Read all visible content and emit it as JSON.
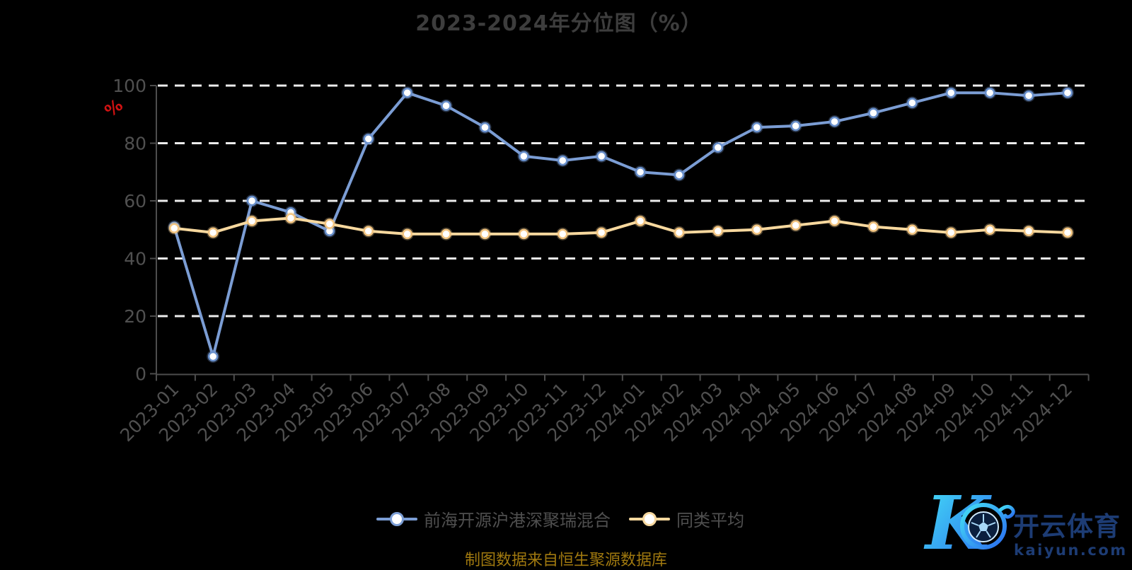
{
  "title": "2023-2024年分位图（%）",
  "footer_note": "制图数据来自恒生聚源数据库",
  "y_axis_unit": "%",
  "watermark": {
    "monogram": "K",
    "brand": "开云体育",
    "domain": "kaiyun.com"
  },
  "colors": {
    "background": "#000000",
    "grid": "#ececec",
    "axis": "#4d4d4d",
    "tick_text": "#505050",
    "title_text": "#3d3d3d",
    "unit_text": "#d01212",
    "legend_text": "#4f4f4f",
    "footer_text": "#a0790f",
    "series_fund": "#7b9dd4",
    "series_fund_marker": "#6990cc",
    "series_avg": "#f7d89e",
    "series_avg_marker": "#f3c581",
    "logo_text": "#1d3c74",
    "logo_gradient_start": "#45e1f5",
    "logo_gradient_end": "#2a6cf0"
  },
  "chart_data": {
    "type": "line",
    "title": "2023-2024年分位图（%）",
    "xlabel": "",
    "ylabel": "%",
    "ylim": [
      0,
      100
    ],
    "yticks": [
      0,
      20,
      40,
      60,
      80,
      100
    ],
    "grid": "horizontal-dashed",
    "legend_position": "bottom",
    "categories": [
      "2023-01",
      "2023-02",
      "2023-03",
      "2023-04",
      "2023-05",
      "2023-06",
      "2023-07",
      "2023-08",
      "2023-09",
      "2023-10",
      "2023-11",
      "2023-12",
      "2024-01",
      "2024-02",
      "2024-03",
      "2024-04",
      "2024-05",
      "2024-06",
      "2024-07",
      "2024-08",
      "2024-09",
      "2024-10",
      "2024-11",
      "2024-12"
    ],
    "series": [
      {
        "name": "前海开源沪港深聚瑞混合",
        "color": "#7b9dd4",
        "marker_color": "#6990cc",
        "values": [
          51,
          6,
          60,
          56,
          49.5,
          81.5,
          97.5,
          93,
          85.5,
          75.5,
          74,
          75.5,
          70,
          69,
          78.5,
          85.5,
          86,
          87.5,
          90.5,
          94,
          97.5,
          97.5,
          96.5,
          97.5
        ]
      },
      {
        "name": "同类平均",
        "color": "#f7d89e",
        "marker_color": "#f3c581",
        "values": [
          50.5,
          49,
          53,
          54,
          52,
          49.5,
          48.5,
          48.5,
          48.5,
          48.5,
          48.5,
          49,
          53,
          49,
          49.5,
          50,
          51.5,
          53,
          51,
          50,
          49,
          50,
          49.5,
          49
        ]
      }
    ]
  }
}
